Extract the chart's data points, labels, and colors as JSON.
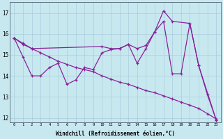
{
  "xlabel": "Windchill (Refroidissement éolien,°C)",
  "background_color": "#c8e8f0",
  "line_color": "#882299",
  "grid_color": "#aaccdd",
  "ylim": [
    11.8,
    17.5
  ],
  "yticks": [
    12,
    13,
    14,
    15,
    16,
    17
  ],
  "xticks": [
    0,
    1,
    2,
    3,
    4,
    5,
    6,
    7,
    8,
    9,
    10,
    11,
    12,
    13,
    14,
    15,
    16,
    17,
    18,
    19,
    20,
    21,
    22,
    23
  ],
  "curve1_x": [
    0,
    1,
    2,
    3,
    4,
    5,
    6,
    7,
    8,
    9,
    10,
    11,
    12,
    13,
    14,
    15,
    16,
    17,
    18,
    19,
    20,
    21,
    22,
    23
  ],
  "curve1_y": [
    15.8,
    15.55,
    15.3,
    15.1,
    14.9,
    14.7,
    14.55,
    14.4,
    14.3,
    14.2,
    14.0,
    13.85,
    13.7,
    13.6,
    13.45,
    13.3,
    13.2,
    13.05,
    12.9,
    12.75,
    12.6,
    12.45,
    12.2,
    11.95
  ],
  "curve2_x": [
    0,
    1,
    2,
    3,
    4,
    5,
    6,
    7,
    8,
    9,
    10,
    11,
    12,
    13,
    14,
    15,
    16,
    17,
    18,
    19,
    20,
    21,
    22,
    23
  ],
  "curve2_y": [
    15.8,
    14.9,
    14.0,
    14.0,
    14.4,
    14.6,
    13.6,
    13.8,
    14.4,
    14.3,
    15.1,
    15.25,
    15.3,
    15.5,
    14.6,
    15.3,
    16.1,
    16.6,
    14.1,
    14.1,
    16.5,
    14.5,
    13.1,
    11.9
  ],
  "curve3_x": [
    0,
    1,
    2,
    10,
    11,
    12,
    13,
    14,
    15,
    16,
    17,
    18,
    20,
    21,
    23
  ],
  "curve3_y": [
    15.8,
    15.5,
    15.3,
    15.4,
    15.3,
    15.3,
    15.5,
    15.3,
    15.45,
    16.1,
    17.1,
    16.6,
    16.5,
    14.5,
    11.9
  ]
}
